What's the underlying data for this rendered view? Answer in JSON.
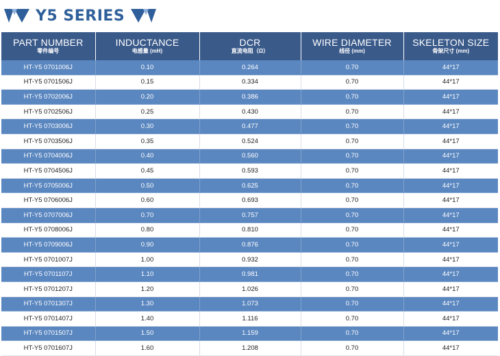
{
  "title": "Y5 SERIES",
  "colors": {
    "accent": "#2f5f9a",
    "header_bg": "#3a5a8a",
    "row_blue": "#5b87c0",
    "row_white": "#ffffff"
  },
  "columns": [
    {
      "en": "PART NUMBER",
      "cn": "零件编号"
    },
    {
      "en": "INDUCTANCE",
      "cn": "电感量 (mH)"
    },
    {
      "en": "DCR",
      "cn": "直流电阻（Ω）"
    },
    {
      "en": "WIRE DIAMETER",
      "cn": "线径 (mm)"
    },
    {
      "en": "SKELETON SIZE",
      "cn": "骨架尺寸 (mm)"
    }
  ],
  "rows": [
    [
      "HT-Y5 0701006J",
      "0.10",
      "0.264",
      "0.70",
      "44*17"
    ],
    [
      "HT-Y5 0701506J",
      "0.15",
      "0.334",
      "0.70",
      "44*17"
    ],
    [
      "HT-Y5 0702006J",
      "0.20",
      "0.386",
      "0.70",
      "44*17"
    ],
    [
      "HT-Y5 0702506J",
      "0.25",
      "0.430",
      "0.70",
      "44*17"
    ],
    [
      "HT-Y5 0703006J",
      "0.30",
      "0.477",
      "0.70",
      "44*17"
    ],
    [
      "HT-Y5 0703506J",
      "0.35",
      "0.524",
      "0.70",
      "44*17"
    ],
    [
      "HT-Y5 0704006J",
      "0.40",
      "0.560",
      "0.70",
      "44*17"
    ],
    [
      "HT-Y5 0704506J",
      "0.45",
      "0.593",
      "0.70",
      "44*17"
    ],
    [
      "HT-Y5 0705006J",
      "0.50",
      "0.625",
      "0.70",
      "44*17"
    ],
    [
      "HT-Y5 0706006J",
      "0.60",
      "0.693",
      "0.70",
      "44*17"
    ],
    [
      "HT-Y5 0707006J",
      "0.70",
      "0.757",
      "0.70",
      "44*17"
    ],
    [
      "HT-Y5 0708006J",
      "0.80",
      "0.810",
      "0.70",
      "44*17"
    ],
    [
      "HT-Y5 0709006J",
      "0.90",
      "0.876",
      "0.70",
      "44*17"
    ],
    [
      "HT-Y5 0701007J",
      "1.00",
      "0.932",
      "0.70",
      "44*17"
    ],
    [
      "HT-Y5 0701107J",
      "1.10",
      "0.981",
      "0.70",
      "44*17"
    ],
    [
      "HT-Y5 0701207J",
      "1.20",
      "1.026",
      "0.70",
      "44*17"
    ],
    [
      "HT-Y5 0701307J",
      "1.30",
      "1.073",
      "0.70",
      "44*17"
    ],
    [
      "HT-Y5 0701407J",
      "1.40",
      "1.116",
      "0.70",
      "44*17"
    ],
    [
      "HT-Y5 0701507J",
      "1.50",
      "1.159",
      "0.70",
      "44*17"
    ],
    [
      "HT-Y5 0701607J",
      "1.60",
      "1.208",
      "0.70",
      "44*17"
    ]
  ]
}
